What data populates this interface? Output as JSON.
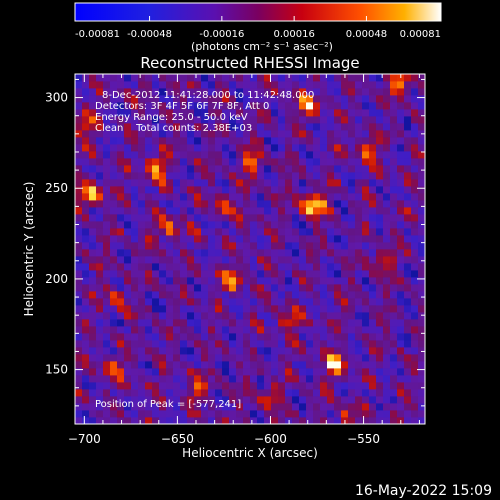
{
  "chart_data": {
    "type": "heatmap",
    "title": "Reconstructed RHESSI Image",
    "xlabel": "Heliocentric X (arcsec)",
    "ylabel": "Heliocentric Y (arcsec)",
    "xlim": [
      -705,
      -517
    ],
    "ylim": [
      120,
      313
    ],
    "x_ticks": [
      -700,
      -650,
      -600,
      -550
    ],
    "y_ticks": [
      150,
      200,
      250,
      300
    ],
    "colorbar": {
      "ticks": [
        "-0.00081",
        "-0.00048",
        "-0.00016",
        "0.00016",
        "0.00048",
        "0.00081"
      ],
      "range": [
        -0.00081,
        0.00081
      ],
      "unit_label": "(photons cm⁻² s⁻¹ asec⁻²)"
    },
    "info_lines": [
      "8-Dec-2012 11:41:28.000 to 11:42:48.000",
      "Detectors: 3F 4F 5F 6F 7F 8F, Att 0",
      "Energy Range: 25.0 - 50.0 keV",
      "Clean    Total counts: 2.38E+03"
    ],
    "peak_label": "Position of Peak = [-577,241]",
    "peak": [
      -577,
      241
    ],
    "hotspots": [
      {
        "x": -577,
        "y": 241,
        "v": 1.0
      },
      {
        "x": -697,
        "y": 246,
        "v": 0.85
      },
      {
        "x": -662,
        "y": 262,
        "v": 0.8
      },
      {
        "x": -565,
        "y": 153,
        "v": 0.8
      },
      {
        "x": -530,
        "y": 308,
        "v": 0.75
      },
      {
        "x": -548,
        "y": 272,
        "v": 0.7
      },
      {
        "x": -580,
        "y": 295,
        "v": 0.7
      },
      {
        "x": -655,
        "y": 228,
        "v": 0.6
      },
      {
        "x": -620,
        "y": 200,
        "v": 0.6
      },
      {
        "x": -610,
        "y": 265,
        "v": 0.55
      },
      {
        "x": -683,
        "y": 190,
        "v": 0.5
      },
      {
        "x": -590,
        "y": 178,
        "v": 0.55
      },
      {
        "x": -700,
        "y": 285,
        "v": 0.55
      },
      {
        "x": -640,
        "y": 140,
        "v": 0.5
      },
      {
        "x": -600,
        "y": 135,
        "v": 0.45
      },
      {
        "x": -540,
        "y": 210,
        "v": 0.5
      },
      {
        "x": -685,
        "y": 150,
        "v": 0.45
      },
      {
        "x": -625,
        "y": 240,
        "v": 0.5
      },
      {
        "x": -560,
        "y": 125,
        "v": 0.45
      }
    ],
    "timestamp": "16-May-2022 15:09"
  }
}
